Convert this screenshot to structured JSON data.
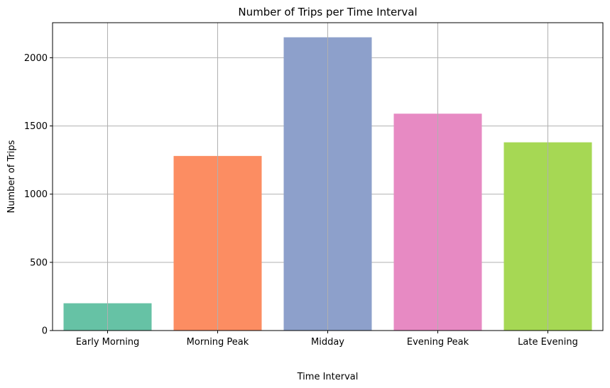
{
  "chart_data": {
    "type": "bar",
    "title": "Number of Trips per Time Interval",
    "xlabel": "Time Interval",
    "ylabel": "Number of Trips",
    "categories": [
      "Early Morning",
      "Morning Peak",
      "Midday",
      "Evening Peak",
      "Late Evening"
    ],
    "values": [
      200,
      1280,
      2150,
      1590,
      1380
    ],
    "colors": [
      "#66c2a5",
      "#fc8d62",
      "#8da0cb",
      "#e78ac3",
      "#a6d854"
    ],
    "ylim": [
      0,
      2257
    ],
    "yticks": [
      0,
      500,
      1000,
      1500,
      2000
    ],
    "grid": true
  }
}
